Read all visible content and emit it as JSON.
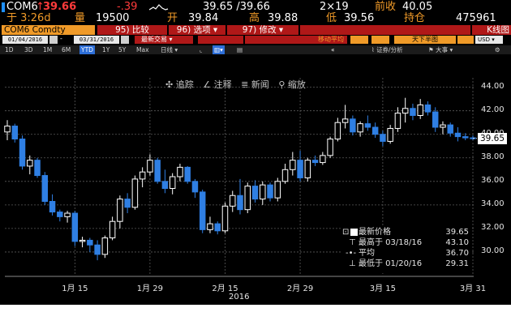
{
  "header": {
    "ticker": "COM6",
    "arrow": "↑",
    "last": "39.66",
    "change": "-.39",
    "bid_ask": "39.65 /39.66",
    "size": "2×19",
    "prev_close_label": "前收",
    "prev_close": "40.05",
    "time": "于 3:26d",
    "vol_label": "量",
    "volume": "19500",
    "open_label": "开",
    "open": "39.84",
    "high_label": "高",
    "high": "39.88",
    "low_label": "低",
    "low": "39.56",
    "oi_label": "持仓",
    "open_interest": "475961"
  },
  "toolbar": {
    "security": "COM6 Comdty",
    "compare": "95) 比较",
    "options": "96) 选项",
    "modify": "97) 修改",
    "chart_type": "K线图"
  },
  "controls": {
    "start_date": "01/04/2016",
    "end_date": "03/31/2016",
    "trade_type": "最新交易",
    "indicator": "移动平均",
    "pane": "天下半图",
    "currency": "USD"
  },
  "ranges": [
    "1D",
    "3D",
    "1M",
    "6M",
    "YTD",
    "1Y",
    "5Y",
    "Max"
  ],
  "selected_range": "YTD",
  "period": "日线",
  "sub_toolbar": {
    "securities_analysis": "证券/分析",
    "events": "大事"
  },
  "annotation_tools": {
    "track": "追踪",
    "annotate": "注释",
    "news": "新闻",
    "zoom": "缩放"
  },
  "legend": {
    "last_label": "最新价格",
    "last_value": "39.65",
    "high_label": "最高于 03/18/16",
    "high_value": "43.10",
    "avg_label": "平均",
    "avg_value": "36.70",
    "low_label": "最低于 01/20/16",
    "low_value": "29.31"
  },
  "colors": {
    "up": "#ffffff",
    "down": "#2f7fe3",
    "background": "#000000",
    "accent": "#f09a28",
    "negative": "#ff3b3b"
  },
  "chart_data": {
    "type": "candlestick",
    "title": "",
    "xlabel": "2016",
    "ylabel": "",
    "ylim": [
      28.0,
      44.8
    ],
    "yticks": [
      30,
      32,
      34,
      36,
      38,
      40,
      42,
      44
    ],
    "ytick_labels": [
      "30.00",
      "32.00",
      "34.00",
      "36.00",
      "38.00",
      "40.00",
      "42.00",
      "44.00"
    ],
    "xticks": [
      {
        "label": "1月 15",
        "index": 9
      },
      {
        "label": "1月 29",
        "index": 19
      },
      {
        "label": "2月 15",
        "index": 29
      },
      {
        "label": "2月 29",
        "index": 39
      },
      {
        "label": "3月 15",
        "index": 50
      },
      {
        "label": "3月 31",
        "index": 62
      }
    ],
    "last_price": 39.65,
    "grid": true,
    "legend_position": "bottom-right",
    "ohlc": [
      [
        40.2,
        41.2,
        39.5,
        40.7
      ],
      [
        40.7,
        40.9,
        39.3,
        39.6
      ],
      [
        39.6,
        39.9,
        37.0,
        37.3
      ],
      [
        37.3,
        38.2,
        36.6,
        37.8
      ],
      [
        37.8,
        38.0,
        36.3,
        36.5
      ],
      [
        36.5,
        36.8,
        34.0,
        34.3
      ],
      [
        34.3,
        34.9,
        33.1,
        33.4
      ],
      [
        33.4,
        33.6,
        32.6,
        33.0
      ],
      [
        33.0,
        33.5,
        32.5,
        33.3
      ],
      [
        33.3,
        33.5,
        30.5,
        30.9
      ],
      [
        30.9,
        31.3,
        30.4,
        31.0
      ],
      [
        31.0,
        31.2,
        30.0,
        30.6
      ],
      [
        30.6,
        31.0,
        29.3,
        29.8
      ],
      [
        29.8,
        31.4,
        29.5,
        31.2
      ],
      [
        31.2,
        33.0,
        31.0,
        32.6
      ],
      [
        32.6,
        34.8,
        32.0,
        34.5
      ],
      [
        34.5,
        35.0,
        33.3,
        33.8
      ],
      [
        33.8,
        36.5,
        33.6,
        36.2
      ],
      [
        36.2,
        37.2,
        35.5,
        36.8
      ],
      [
        36.8,
        38.3,
        36.5,
        37.8
      ],
      [
        37.8,
        38.0,
        35.8,
        36.0
      ],
      [
        36.0,
        37.0,
        35.0,
        35.4
      ],
      [
        35.4,
        36.7,
        34.9,
        36.4
      ],
      [
        36.4,
        37.5,
        36.0,
        37.2
      ],
      [
        37.2,
        37.3,
        35.8,
        36.0
      ],
      [
        36.0,
        36.2,
        34.6,
        35.1
      ],
      [
        35.1,
        35.3,
        31.6,
        31.9
      ],
      [
        31.9,
        33.0,
        31.6,
        32.4
      ],
      [
        32.4,
        32.6,
        31.5,
        31.8
      ],
      [
        31.8,
        34.2,
        31.6,
        33.9
      ],
      [
        33.9,
        35.2,
        33.4,
        34.8
      ],
      [
        34.8,
        36.2,
        33.2,
        33.6
      ],
      [
        33.6,
        35.9,
        33.3,
        35.6
      ],
      [
        35.6,
        36.1,
        34.2,
        34.5
      ],
      [
        34.5,
        36.0,
        34.0,
        35.7
      ],
      [
        35.7,
        35.9,
        34.3,
        34.6
      ],
      [
        34.6,
        36.3,
        34.3,
        36.0
      ],
      [
        36.0,
        37.5,
        35.8,
        37.0
      ],
      [
        37.0,
        38.5,
        36.5,
        37.8
      ],
      [
        37.8,
        38.6,
        36.0,
        36.3
      ],
      [
        36.3,
        38.0,
        36.0,
        37.8
      ],
      [
        37.8,
        38.2,
        37.3,
        37.6
      ],
      [
        37.6,
        38.5,
        37.4,
        38.2
      ],
      [
        38.2,
        39.8,
        38.0,
        39.6
      ],
      [
        39.6,
        41.4,
        39.4,
        41.0
      ],
      [
        41.0,
        42.5,
        40.5,
        41.3
      ],
      [
        41.3,
        41.6,
        39.9,
        40.2
      ],
      [
        40.2,
        41.1,
        39.8,
        40.9
      ],
      [
        40.9,
        41.6,
        40.3,
        40.6
      ],
      [
        40.6,
        41.0,
        39.7,
        40.0
      ],
      [
        40.0,
        40.3,
        39.0,
        39.4
      ],
      [
        39.4,
        40.8,
        39.2,
        40.5
      ],
      [
        40.5,
        42.3,
        40.2,
        41.8
      ],
      [
        41.8,
        43.1,
        41.0,
        42.2
      ],
      [
        42.2,
        42.6,
        41.2,
        41.6
      ],
      [
        41.6,
        43.0,
        41.3,
        42.5
      ],
      [
        42.5,
        42.8,
        41.6,
        41.9
      ],
      [
        41.9,
        42.3,
        40.2,
        40.6
      ],
      [
        40.6,
        41.1,
        40.0,
        40.8
      ],
      [
        40.8,
        41.0,
        39.8,
        40.1
      ],
      [
        40.1,
        40.6,
        39.4,
        39.8
      ],
      [
        39.8,
        40.1,
        39.5,
        39.7
      ],
      [
        39.7,
        39.9,
        39.5,
        39.65
      ]
    ]
  }
}
